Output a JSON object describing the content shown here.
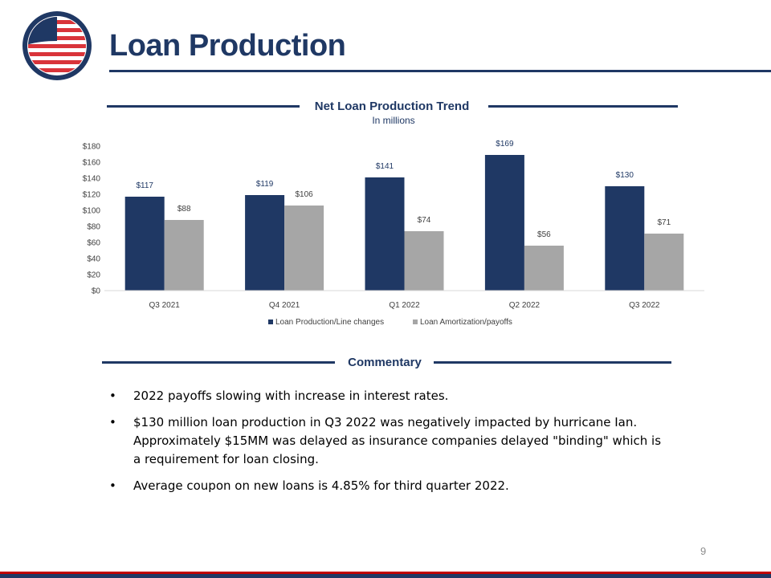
{
  "page": {
    "title": "Loan Production",
    "page_number": "9"
  },
  "colors": {
    "navy": "#1f3864",
    "gray": "#a6a6a6",
    "red": "#c00000"
  },
  "chart_section": {
    "title": "Net Loan Production Trend",
    "subtitle": "In millions"
  },
  "commentary": {
    "title": "Commentary",
    "bullet_char": "•",
    "items": [
      "2022 payoffs slowing with increase in interest rates.",
      "$130 million loan production in Q3 2022 was negatively impacted by hurricane Ian. Approximately $15MM was delayed as insurance companies delayed \"binding\" which is a requirement for loan closing.",
      "Average coupon on new loans is 4.85% for third quarter 2022."
    ]
  },
  "chart_data": {
    "type": "bar",
    "title": "Net Loan Production Trend",
    "subtitle": "In millions",
    "categories": [
      "Q3 2021",
      "Q4 2021",
      "Q1 2022",
      "Q2 2022",
      "Q3 2022"
    ],
    "series": [
      {
        "name": "Loan Production/Line changes",
        "values": [
          117,
          119,
          141,
          169,
          130
        ],
        "color": "#1f3864",
        "labels": [
          "$117",
          "$119",
          "$141",
          "$169",
          "$130"
        ]
      },
      {
        "name": "Loan Amortization/payoffs",
        "values": [
          88,
          106,
          74,
          56,
          71
        ],
        "color": "#a6a6a6",
        "labels": [
          "$88",
          "$106",
          "$74",
          "$56",
          "$71"
        ]
      }
    ],
    "ylim": [
      0,
      180
    ],
    "yticks": [
      0,
      20,
      40,
      60,
      80,
      100,
      120,
      140,
      160,
      180
    ],
    "ytick_labels": [
      "$0",
      "$20",
      "$40",
      "$60",
      "$80",
      "$100",
      "$120",
      "$140",
      "$160",
      "$180"
    ],
    "grid": false,
    "legend_position": "bottom"
  }
}
